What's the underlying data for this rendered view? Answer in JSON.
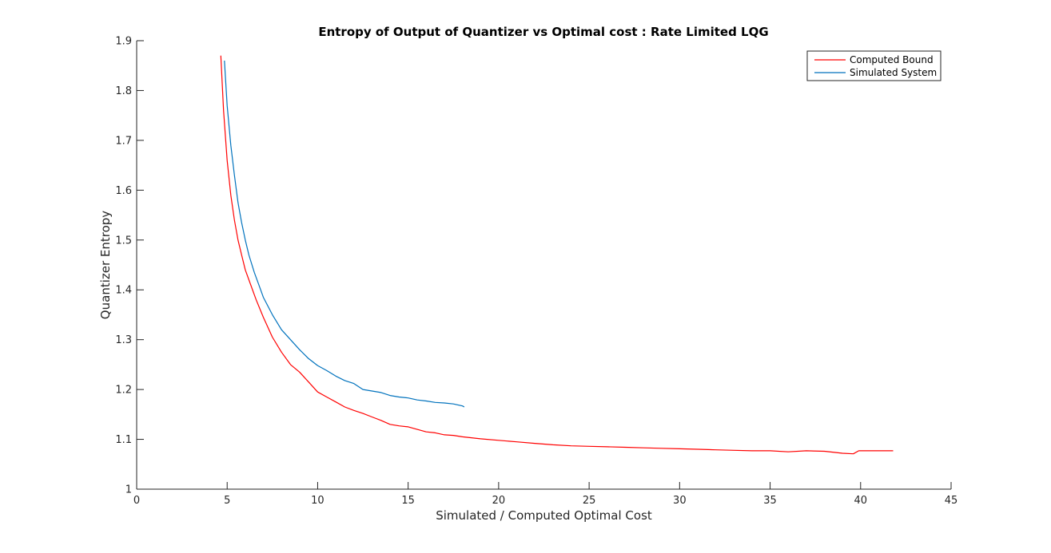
{
  "chart_data": {
    "type": "line",
    "title": "Entropy of Output of Quantizer vs Optimal cost : Rate Limited LQG",
    "xlabel": "Simulated / Computed Optimal Cost",
    "ylabel": "Quantizer Entropy",
    "xlim": [
      0,
      45
    ],
    "ylim": [
      1,
      1.9
    ],
    "xticks": [
      "0",
      "5",
      "10",
      "15",
      "20",
      "25",
      "30",
      "35",
      "40",
      "45"
    ],
    "yticks": [
      "1",
      "1.1",
      "1.2",
      "1.3",
      "1.4",
      "1.5",
      "1.6",
      "1.7",
      "1.8",
      "1.9"
    ],
    "grid": false,
    "legend_position": "top-right",
    "series": [
      {
        "name": "Computed Bound",
        "color": "#ff0000",
        "points": [
          [
            4.65,
            1.87
          ],
          [
            4.8,
            1.76
          ],
          [
            5.0,
            1.66
          ],
          [
            5.2,
            1.59
          ],
          [
            5.4,
            1.54
          ],
          [
            5.6,
            1.5
          ],
          [
            5.8,
            1.47
          ],
          [
            6.0,
            1.44
          ],
          [
            6.3,
            1.41
          ],
          [
            6.6,
            1.38
          ],
          [
            7.0,
            1.345
          ],
          [
            7.5,
            1.305
          ],
          [
            8.0,
            1.275
          ],
          [
            8.5,
            1.25
          ],
          [
            9.0,
            1.235
          ],
          [
            9.5,
            1.215
          ],
          [
            10.0,
            1.195
          ],
          [
            10.5,
            1.185
          ],
          [
            11.0,
            1.175
          ],
          [
            11.5,
            1.165
          ],
          [
            12.0,
            1.158
          ],
          [
            12.5,
            1.152
          ],
          [
            13.0,
            1.145
          ],
          [
            13.5,
            1.138
          ],
          [
            14.0,
            1.13
          ],
          [
            14.5,
            1.127
          ],
          [
            15.0,
            1.125
          ],
          [
            15.5,
            1.12
          ],
          [
            16.0,
            1.115
          ],
          [
            16.5,
            1.113
          ],
          [
            17.0,
            1.109
          ],
          [
            17.5,
            1.108
          ],
          [
            18.0,
            1.105
          ],
          [
            19.0,
            1.101
          ],
          [
            20.0,
            1.098
          ],
          [
            21.0,
            1.095
          ],
          [
            22.0,
            1.092
          ],
          [
            23.0,
            1.089
          ],
          [
            24.0,
            1.087
          ],
          [
            25.0,
            1.086
          ],
          [
            26.0,
            1.085
          ],
          [
            27.0,
            1.084
          ],
          [
            28.0,
            1.083
          ],
          [
            29.0,
            1.082
          ],
          [
            30.0,
            1.081
          ],
          [
            31.0,
            1.08
          ],
          [
            32.0,
            1.079
          ],
          [
            33.0,
            1.078
          ],
          [
            34.0,
            1.077
          ],
          [
            35.0,
            1.077
          ],
          [
            36.0,
            1.075
          ],
          [
            37.0,
            1.077
          ],
          [
            38.0,
            1.076
          ],
          [
            39.0,
            1.072
          ],
          [
            39.6,
            1.071
          ],
          [
            39.9,
            1.077
          ],
          [
            41.0,
            1.077
          ],
          [
            41.8,
            1.077
          ]
        ]
      },
      {
        "name": "Simulated System",
        "color": "#0072bd",
        "points": [
          [
            4.85,
            1.86
          ],
          [
            5.0,
            1.77
          ],
          [
            5.2,
            1.69
          ],
          [
            5.4,
            1.63
          ],
          [
            5.6,
            1.575
          ],
          [
            5.8,
            1.535
          ],
          [
            6.0,
            1.5
          ],
          [
            6.2,
            1.47
          ],
          [
            6.5,
            1.435
          ],
          [
            6.8,
            1.405
          ],
          [
            7.0,
            1.385
          ],
          [
            7.5,
            1.35
          ],
          [
            8.0,
            1.32
          ],
          [
            8.5,
            1.3
          ],
          [
            9.0,
            1.28
          ],
          [
            9.5,
            1.262
          ],
          [
            10.0,
            1.248
          ],
          [
            10.5,
            1.238
          ],
          [
            11.0,
            1.227
          ],
          [
            11.5,
            1.218
          ],
          [
            12.0,
            1.212
          ],
          [
            12.5,
            1.2
          ],
          [
            13.0,
            1.197
          ],
          [
            13.5,
            1.194
          ],
          [
            14.0,
            1.188
          ],
          [
            14.5,
            1.185
          ],
          [
            15.0,
            1.183
          ],
          [
            15.5,
            1.179
          ],
          [
            16.0,
            1.177
          ],
          [
            16.5,
            1.174
          ],
          [
            17.0,
            1.173
          ],
          [
            17.5,
            1.171
          ],
          [
            18.0,
            1.167
          ],
          [
            18.1,
            1.165
          ]
        ]
      }
    ]
  }
}
